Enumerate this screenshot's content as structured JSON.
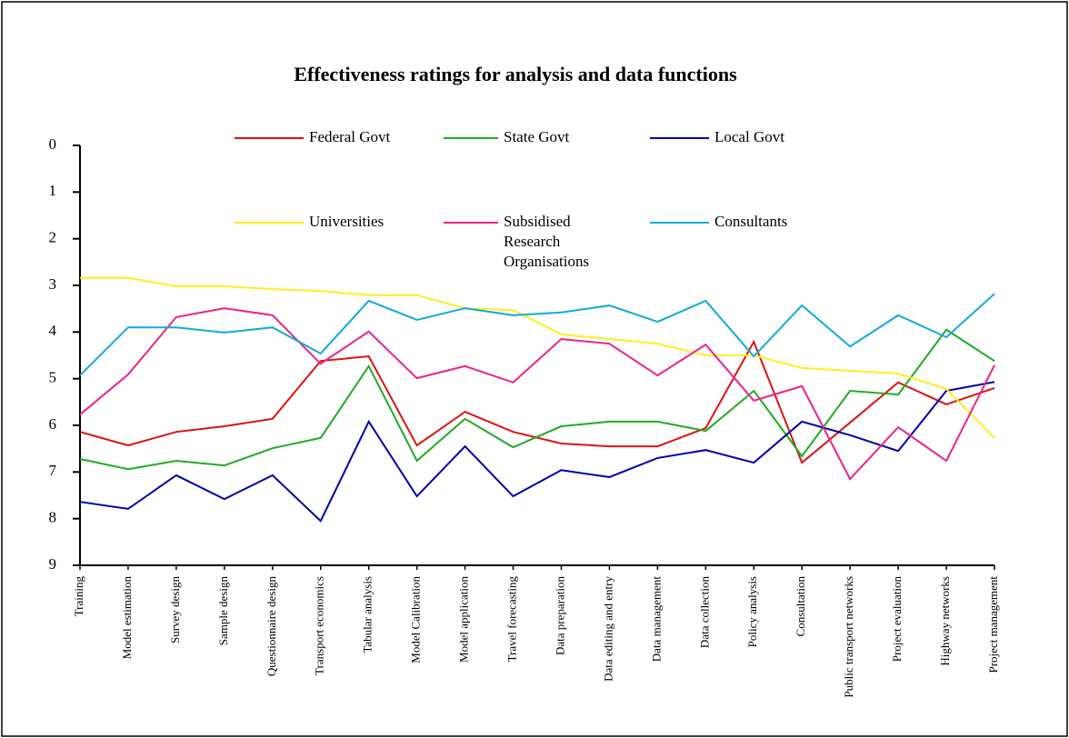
{
  "chart_data": {
    "type": "line",
    "title": "Effectiveness ratings for analysis and data functions",
    "categories": [
      "Training",
      "Model estimation",
      "Survey design",
      "Sample design",
      "Questionnaire design",
      "Transport economics",
      "Tabular analysis",
      "Model Calibration",
      "Model application",
      "Travel forecasting",
      "Data preparation",
      "Data editing and entry",
      "Data management",
      "Data collection",
      "Policy analysis",
      "Consultation",
      "Public transport networks",
      "Project evaluation",
      "Highway networks",
      "Project management"
    ],
    "ylim": [
      0,
      9
    ],
    "yticks": [
      0,
      1,
      2,
      3,
      4,
      5,
      6,
      7,
      8,
      9
    ],
    "y_inverted": true,
    "grid": false,
    "series": [
      {
        "name": "Federal Govt",
        "color": "#dd1111",
        "values": [
          6.14,
          6.43,
          6.14,
          6.02,
          5.86,
          4.62,
          4.52,
          6.43,
          5.71,
          6.14,
          6.39,
          6.45,
          6.45,
          6.06,
          4.21,
          6.8,
          5.94,
          5.08,
          5.55,
          5.2
        ]
      },
      {
        "name": "State Govt",
        "color": "#22aa22",
        "values": [
          6.72,
          6.94,
          6.76,
          6.86,
          6.49,
          6.27,
          4.73,
          6.76,
          5.86,
          6.47,
          6.02,
          5.92,
          5.92,
          6.12,
          5.26,
          6.66,
          5.26,
          5.34,
          3.95,
          4.62
        ]
      },
      {
        "name": "Local Govt",
        "color": "#0000aa",
        "values": [
          7.64,
          7.79,
          7.07,
          7.58,
          7.07,
          8.05,
          5.92,
          7.52,
          6.45,
          7.52,
          6.96,
          7.11,
          6.7,
          6.53,
          6.8,
          5.92,
          6.21,
          6.55,
          5.26,
          5.07
        ]
      },
      {
        "name": "Universities",
        "color": "#ffee22",
        "values": [
          2.84,
          2.84,
          3.02,
          3.02,
          3.08,
          3.12,
          3.21,
          3.21,
          3.49,
          3.53,
          4.05,
          4.15,
          4.25,
          4.5,
          4.5,
          4.77,
          4.83,
          4.89,
          5.22,
          6.27
        ]
      },
      {
        "name": "Subsidised Research Organisations",
        "color": "#ee2288",
        "values": [
          5.77,
          4.91,
          3.68,
          3.49,
          3.64,
          4.68,
          3.99,
          4.99,
          4.73,
          5.08,
          4.15,
          4.25,
          4.93,
          4.27,
          5.47,
          5.16,
          7.15,
          6.04,
          6.76,
          4.71
        ]
      },
      {
        "name": "Consultants",
        "color": "#11aadd",
        "values": [
          4.93,
          3.9,
          3.9,
          4.01,
          3.9,
          4.46,
          3.33,
          3.74,
          3.49,
          3.64,
          3.58,
          3.43,
          3.78,
          3.33,
          4.52,
          3.43,
          4.31,
          3.64,
          4.11,
          3.18
        ]
      }
    ]
  }
}
